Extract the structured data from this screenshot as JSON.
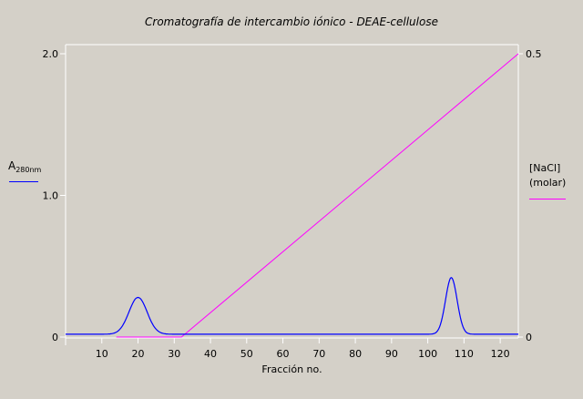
{
  "chart_data": {
    "type": "line",
    "title": "Cromatografía de intercambio iónico - DEAE-cellulose",
    "xlabel": "Fracción no.",
    "xlim": [
      0,
      125
    ],
    "xticks": [
      10,
      20,
      30,
      40,
      50,
      60,
      70,
      80,
      90,
      100,
      110,
      120
    ],
    "left_axis": {
      "label_main": "A",
      "label_sub": "280nm",
      "ylim": [
        0,
        2.0
      ],
      "ticks": [
        0,
        1.0,
        2.0
      ],
      "tick_labels": [
        "0",
        "1.0",
        "2.0"
      ]
    },
    "right_axis": {
      "label_line1": "[NaCl]",
      "label_line2": "(molar)",
      "ylim": [
        0,
        0.5
      ],
      "ticks": [
        0,
        0.5
      ],
      "tick_labels": [
        "0",
        "0.5"
      ]
    },
    "series": [
      {
        "axis": "left",
        "color": "#0000ff",
        "baseline": 0.02,
        "peaks": [
          {
            "center": 20,
            "height": 0.26,
            "width": 2.5
          },
          {
            "center": 106.5,
            "height": 0.4,
            "width": 1.6
          }
        ],
        "x": [
          0,
          125
        ]
      },
      {
        "axis": "right",
        "color": "#ff00ff",
        "x": [
          14,
          32,
          125
        ],
        "y": [
          0.0,
          0.0,
          0.5
        ]
      }
    ],
    "grid": false
  }
}
